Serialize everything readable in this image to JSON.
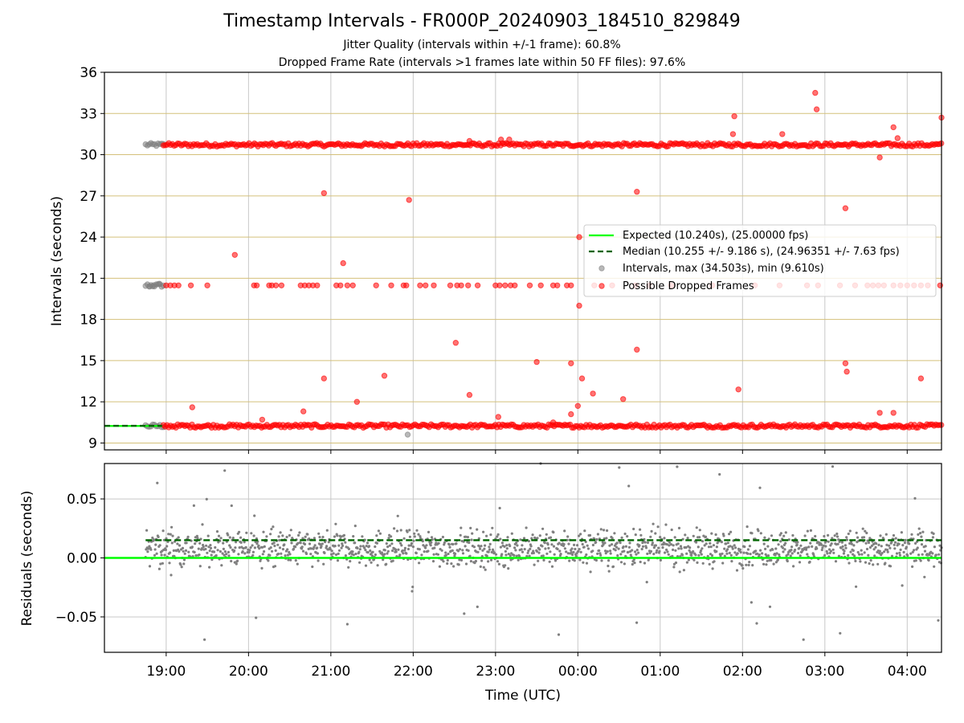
{
  "chart_data": [
    {
      "type": "scatter",
      "title": "Timestamp Intervals - FR000P_20240903_184510_829849",
      "subtitle_lines": [
        "Jitter Quality (intervals within +/-1 frame): 60.8%",
        "Dropped Frame Rate (intervals >1 frames late within 50 FF files): 97.6%"
      ],
      "ylabel": "Intervals (seconds)",
      "xlim": [
        "18:15",
        "04:25"
      ],
      "ylim": [
        8.5,
        36
      ],
      "yticks": [
        9,
        12,
        15,
        18,
        21,
        24,
        27,
        30,
        33,
        36
      ],
      "grid": "vertical grey at hour ticks, horizontal tan at y ticks",
      "legend_placement": "center-right",
      "legend": [
        "Expected (10.240s), (25.00000 fps)",
        "Median (10.255 +/- 9.186 s), (24.96351 +/- 7.63 fps)",
        "Intervals, max (34.503s), min (9.610s)",
        "Possible Dropped Frames"
      ],
      "colors": {
        "expected": "#00ff00",
        "median": "#006400",
        "intervals": "#808080",
        "dropped": "#ff0000",
        "grid_h": "#d4c07a",
        "grid_v": "#c8c8c8"
      },
      "series": [
        {
          "name": "Expected (10.240s), (25.00000 fps)",
          "style": "line",
          "y": 10.24,
          "x": [
            "18:15",
            "18:57"
          ]
        },
        {
          "name": "Median (10.255 +/- 9.186 s), (24.96351 +/- 7.63 fps)",
          "style": "dashed",
          "y": 10.255,
          "x": [
            "18:15",
            "18:57"
          ]
        },
        {
          "name": "Intervals, max (34.503s), min (9.610s)",
          "bands": [
            {
              "y": 30.72,
              "x_range": [
                "18:45",
                "18:58"
              ]
            },
            {
              "y": 20.48,
              "x_range": [
                "18:45",
                "18:58"
              ]
            },
            {
              "y": 10.24,
              "x_range": [
                "18:45",
                "18:58"
              ]
            }
          ],
          "points": [
            {
              "x": "18:48",
              "y": 20.4
            },
            {
              "x": "18:51",
              "y": 20.5
            },
            {
              "x": "18:55",
              "y": 20.6
            },
            {
              "x": "21:56",
              "y": 9.61
            }
          ]
        },
        {
          "name": "Possible Dropped Frames",
          "bands": [
            {
              "y": 30.72,
              "x_range": [
                "18:58",
                "04:25"
              ]
            },
            {
              "y": 10.24,
              "x_range": [
                "18:58",
                "04:25"
              ]
            }
          ],
          "points": [
            {
              "x": "19:00",
              "y": 20.48
            },
            {
              "x": "19:03",
              "y": 20.48
            },
            {
              "x": "19:06",
              "y": 20.48
            },
            {
              "x": "19:09",
              "y": 20.48
            },
            {
              "x": "19:18",
              "y": 20.48
            },
            {
              "x": "19:30",
              "y": 20.48
            },
            {
              "x": "20:04",
              "y": 20.48
            },
            {
              "x": "20:06",
              "y": 20.48
            },
            {
              "x": "20:15",
              "y": 20.48
            },
            {
              "x": "20:17",
              "y": 20.48
            },
            {
              "x": "20:20",
              "y": 20.48
            },
            {
              "x": "20:24",
              "y": 20.48
            },
            {
              "x": "20:38",
              "y": 20.48
            },
            {
              "x": "20:41",
              "y": 20.48
            },
            {
              "x": "20:44",
              "y": 20.48
            },
            {
              "x": "20:47",
              "y": 20.48
            },
            {
              "x": "20:50",
              "y": 20.48
            },
            {
              "x": "21:04",
              "y": 20.48
            },
            {
              "x": "21:07",
              "y": 20.48
            },
            {
              "x": "21:12",
              "y": 20.48
            },
            {
              "x": "21:16",
              "y": 20.48
            },
            {
              "x": "21:33",
              "y": 20.48
            },
            {
              "x": "21:44",
              "y": 20.48
            },
            {
              "x": "21:53",
              "y": 20.48
            },
            {
              "x": "21:55",
              "y": 20.48
            },
            {
              "x": "22:05",
              "y": 20.48
            },
            {
              "x": "22:09",
              "y": 20.48
            },
            {
              "x": "22:15",
              "y": 20.48
            },
            {
              "x": "22:27",
              "y": 20.48
            },
            {
              "x": "22:32",
              "y": 20.48
            },
            {
              "x": "22:35",
              "y": 20.48
            },
            {
              "x": "22:40",
              "y": 20.48
            },
            {
              "x": "22:47",
              "y": 20.48
            },
            {
              "x": "23:00",
              "y": 20.48
            },
            {
              "x": "23:03",
              "y": 20.48
            },
            {
              "x": "23:07",
              "y": 20.48
            },
            {
              "x": "23:11",
              "y": 20.48
            },
            {
              "x": "23:14",
              "y": 20.48
            },
            {
              "x": "23:25",
              "y": 20.48
            },
            {
              "x": "23:33",
              "y": 20.48
            },
            {
              "x": "23:42",
              "y": 20.48
            },
            {
              "x": "23:45",
              "y": 20.48
            },
            {
              "x": "23:52",
              "y": 20.48
            },
            {
              "x": "23:55",
              "y": 20.48
            },
            {
              "x": "00:12",
              "y": 20.48
            },
            {
              "x": "00:25",
              "y": 20.48
            },
            {
              "x": "00:42",
              "y": 20.48
            },
            {
              "x": "00:52",
              "y": 20.48
            },
            {
              "x": "01:08",
              "y": 20.48
            },
            {
              "x": "01:38",
              "y": 20.48
            },
            {
              "x": "02:09",
              "y": 20.48
            },
            {
              "x": "02:27",
              "y": 20.48
            },
            {
              "x": "02:47",
              "y": 20.48
            },
            {
              "x": "02:55",
              "y": 20.48
            },
            {
              "x": "03:11",
              "y": 20.48
            },
            {
              "x": "03:22",
              "y": 20.48
            },
            {
              "x": "03:31",
              "y": 20.48
            },
            {
              "x": "03:35",
              "y": 20.48
            },
            {
              "x": "03:39",
              "y": 20.48
            },
            {
              "x": "03:43",
              "y": 20.48
            },
            {
              "x": "03:50",
              "y": 20.48
            },
            {
              "x": "03:55",
              "y": 20.48
            },
            {
              "x": "04:00",
              "y": 20.48
            },
            {
              "x": "04:05",
              "y": 20.48
            },
            {
              "x": "04:10",
              "y": 20.48
            },
            {
              "x": "04:15",
              "y": 20.48
            },
            {
              "x": "04:24",
              "y": 20.48
            },
            {
              "x": "19:19",
              "y": 11.6
            },
            {
              "x": "19:50",
              "y": 22.7
            },
            {
              "x": "20:10",
              "y": 10.7
            },
            {
              "x": "20:40",
              "y": 11.3
            },
            {
              "x": "20:55",
              "y": 27.2
            },
            {
              "x": "20:55",
              "y": 13.7
            },
            {
              "x": "21:09",
              "y": 22.1
            },
            {
              "x": "21:19",
              "y": 12.0
            },
            {
              "x": "21:39",
              "y": 13.9
            },
            {
              "x": "21:57",
              "y": 26.7
            },
            {
              "x": "22:31",
              "y": 16.3
            },
            {
              "x": "22:41",
              "y": 12.5
            },
            {
              "x": "23:02",
              "y": 10.9
            },
            {
              "x": "23:30",
              "y": 14.9
            },
            {
              "x": "23:42",
              "y": 10.5
            },
            {
              "x": "23:55",
              "y": 14.8
            },
            {
              "x": "23:55",
              "y": 11.1
            },
            {
              "x": "00:00",
              "y": 11.7
            },
            {
              "x": "00:01",
              "y": 24.0
            },
            {
              "x": "00:01",
              "y": 19.0
            },
            {
              "x": "00:03",
              "y": 13.7
            },
            {
              "x": "00:11",
              "y": 12.6
            },
            {
              "x": "00:33",
              "y": 12.2
            },
            {
              "x": "00:43",
              "y": 27.3
            },
            {
              "x": "00:43",
              "y": 15.8
            },
            {
              "x": "01:54",
              "y": 32.8
            },
            {
              "x": "01:53",
              "y": 31.5
            },
            {
              "x": "01:57",
              "y": 12.9
            },
            {
              "x": "02:29",
              "y": 31.5
            },
            {
              "x": "02:53",
              "y": 34.5
            },
            {
              "x": "02:54",
              "y": 33.3
            },
            {
              "x": "03:15",
              "y": 26.1
            },
            {
              "x": "03:15",
              "y": 14.8
            },
            {
              "x": "03:16",
              "y": 14.2
            },
            {
              "x": "03:40",
              "y": 29.8
            },
            {
              "x": "03:40",
              "y": 11.2
            },
            {
              "x": "03:50",
              "y": 32.0
            },
            {
              "x": "03:53",
              "y": 31.2
            },
            {
              "x": "03:50",
              "y": 11.2
            },
            {
              "x": "04:10",
              "y": 13.7
            },
            {
              "x": "04:25",
              "y": 32.7
            },
            {
              "x": "23:04",
              "y": 31.1
            },
            {
              "x": "22:41",
              "y": 31.0
            },
            {
              "x": "23:10",
              "y": 31.1
            }
          ]
        }
      ]
    },
    {
      "type": "scatter",
      "ylabel": "Residuals (seconds)",
      "xlabel": "Time (UTC)",
      "xlim": [
        "18:15",
        "04:25"
      ],
      "ylim": [
        -0.08,
        0.08
      ],
      "yticks": [
        0.05,
        0.0,
        -0.05
      ],
      "ytick_labels": [
        "0.05",
        "0.00",
        "−0.05"
      ],
      "xticks": [
        "19:00",
        "20:00",
        "21:00",
        "22:00",
        "23:00",
        "00:00",
        "01:00",
        "02:00",
        "03:00",
        "04:00"
      ],
      "grid": true,
      "series": [
        {
          "name": "",
          "style": "line",
          "color": "#00ff00",
          "y": 0.0
        },
        {
          "name": "",
          "style": "dashed",
          "color": "#006400",
          "y": 0.015
        },
        {
          "name": "",
          "style": "points",
          "color": "#808080",
          "count": 1500,
          "x_range": [
            "18:45",
            "04:25"
          ],
          "y_center": 0.008,
          "y_spread": 0.015
        }
      ]
    }
  ]
}
